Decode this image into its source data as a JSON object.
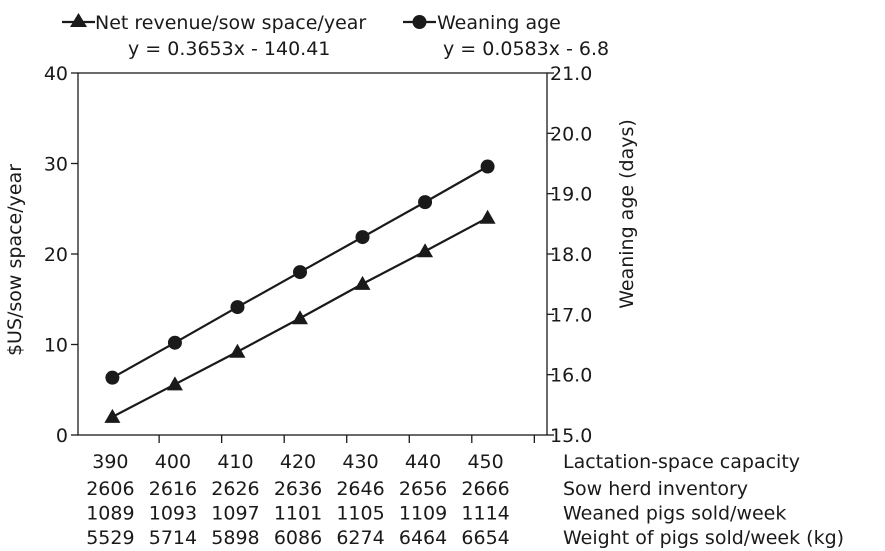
{
  "chart_data": {
    "type": "line",
    "x": [
      390,
      400,
      410,
      420,
      430,
      440,
      450
    ],
    "x_axis_label": "Lactation-space capacity",
    "extra_rows": [
      {
        "label": "Sow herd inventory",
        "values": [
          "2606",
          "2616",
          "2626",
          "2636",
          "2646",
          "2656",
          "2666"
        ]
      },
      {
        "label": "Weaned pigs sold/week",
        "values": [
          "1089",
          "1093",
          "1097",
          "1101",
          "1105",
          "1109",
          "1114"
        ]
      },
      {
        "label": "Weight of pigs sold/week (kg)",
        "values": [
          "5529",
          "5714",
          "5898",
          "6086",
          "6274",
          "6464",
          "6654"
        ]
      }
    ],
    "y_left": {
      "label": "$US/sow space/year",
      "min": 0,
      "max": 40,
      "ticks": [
        0,
        10,
        20,
        30,
        40
      ]
    },
    "y_right": {
      "label": "Weaning age (days)",
      "min": 15.0,
      "max": 21.0,
      "ticks": [
        "15.0",
        "16.0",
        "17.0",
        "18.0",
        "19.0",
        "20.0",
        "21.0"
      ]
    },
    "series": [
      {
        "name": "Net revenue/sow space/year",
        "axis": "left",
        "marker": "triangle",
        "equation": "y = 0.3653x - 140.41",
        "values": [
          2.0,
          5.6,
          9.2,
          12.9,
          16.7,
          20.3,
          24.0
        ]
      },
      {
        "name": "Weaning age",
        "axis": "right",
        "marker": "circle",
        "equation": "y = 0.0583x - 6.8",
        "values": [
          15.95,
          16.53,
          17.12,
          17.7,
          18.28,
          18.86,
          19.45
        ]
      }
    ],
    "grid": false,
    "legend_position": "top"
  }
}
